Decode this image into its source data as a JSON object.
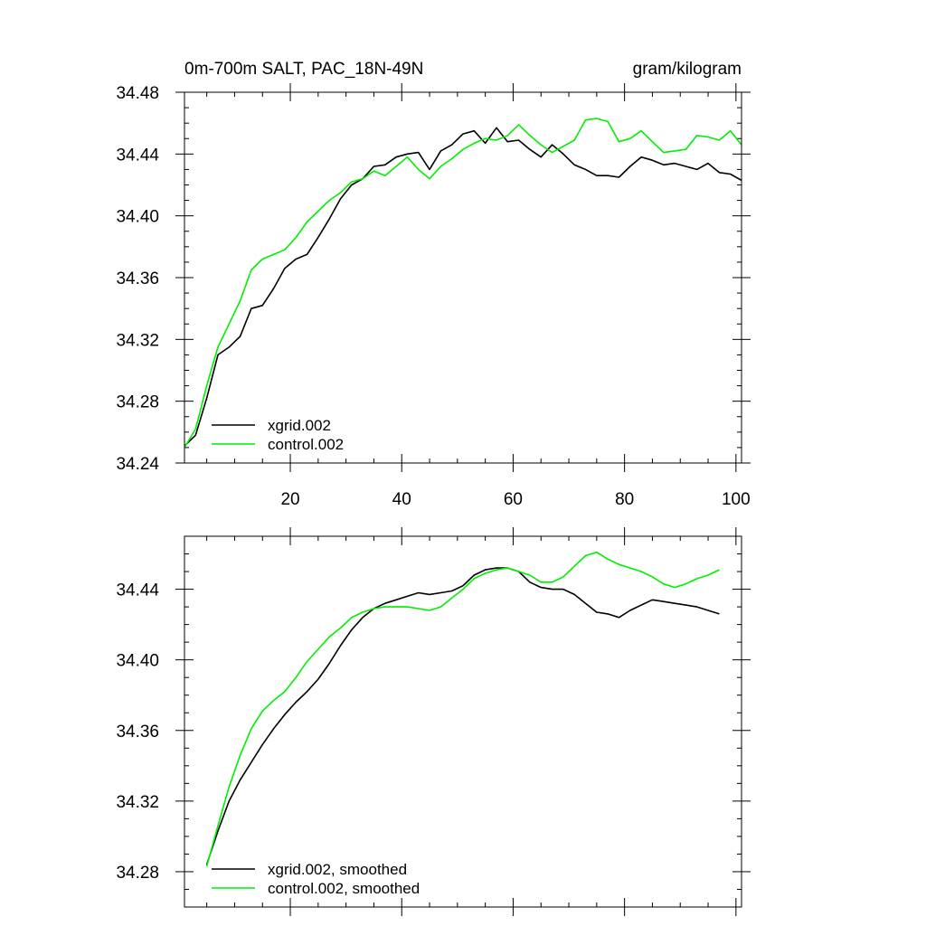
{
  "chart_data": [
    {
      "type": "line",
      "title": "0m-700m SALT, PAC_18N-49N",
      "units": "gram/kilogram",
      "xlim": [
        1,
        101
      ],
      "ylim": [
        34.24,
        34.48
      ],
      "x_ticks": [
        20,
        40,
        60,
        80,
        100
      ],
      "y_ticks": [
        34.24,
        34.28,
        34.32,
        34.36,
        34.4,
        34.44,
        34.48
      ],
      "y_tick_labels": [
        "34.24",
        "34.28",
        "34.32",
        "34.36",
        "34.40",
        "34.44",
        "34.48"
      ],
      "x_tick_labels": [
        "20",
        "40",
        "60",
        "80",
        "100"
      ],
      "legend": [
        "xgrid.002",
        "control.002"
      ],
      "legend_position": "bottom-left",
      "series": [
        {
          "name": "xgrid.002",
          "color": "#000000",
          "x": [
            1,
            3,
            5,
            7,
            9,
            11,
            13,
            15,
            17,
            19,
            21,
            23,
            25,
            27,
            29,
            31,
            33,
            35,
            37,
            39,
            41,
            43,
            45,
            47,
            49,
            51,
            53,
            55,
            57,
            59,
            61,
            63,
            65,
            67,
            69,
            71,
            73,
            75,
            77,
            79,
            81,
            83,
            85,
            87,
            89,
            91,
            93,
            95,
            97,
            99,
            101
          ],
          "values": [
            34.251,
            34.258,
            34.282,
            34.31,
            34.315,
            34.322,
            34.34,
            34.342,
            34.353,
            34.366,
            34.372,
            34.375,
            34.386,
            34.398,
            34.411,
            34.42,
            34.424,
            34.432,
            34.433,
            34.438,
            34.44,
            34.441,
            34.43,
            34.442,
            34.446,
            34.453,
            34.455,
            34.447,
            34.457,
            34.448,
            34.449,
            34.443,
            34.438,
            34.446,
            34.44,
            34.433,
            34.43,
            34.426,
            34.426,
            34.425,
            34.432,
            34.438,
            34.436,
            34.433,
            34.434,
            34.432,
            34.43,
            34.434,
            34.428,
            34.427,
            34.423
          ]
        },
        {
          "name": "control.002",
          "color": "#00ee00",
          "x": [
            1,
            3,
            5,
            7,
            9,
            11,
            13,
            15,
            17,
            19,
            21,
            23,
            25,
            27,
            29,
            31,
            33,
            35,
            37,
            39,
            41,
            43,
            45,
            47,
            49,
            51,
            53,
            55,
            57,
            59,
            61,
            63,
            65,
            67,
            69,
            71,
            73,
            75,
            77,
            79,
            81,
            83,
            85,
            87,
            89,
            91,
            93,
            95,
            97,
            99,
            101
          ],
          "values": [
            34.25,
            34.262,
            34.29,
            34.315,
            34.33,
            34.345,
            34.365,
            34.372,
            34.375,
            34.378,
            34.386,
            34.396,
            34.403,
            34.41,
            34.415,
            34.422,
            34.424,
            34.429,
            34.426,
            34.432,
            34.438,
            34.43,
            34.424,
            34.432,
            34.437,
            34.443,
            34.447,
            34.45,
            34.449,
            34.452,
            34.459,
            34.452,
            34.446,
            34.441,
            34.445,
            34.449,
            34.462,
            34.463,
            34.461,
            34.448,
            34.45,
            34.455,
            34.448,
            34.441,
            34.442,
            34.443,
            34.452,
            34.451,
            34.449,
            34.455,
            34.446
          ]
        }
      ]
    },
    {
      "type": "line",
      "title": "",
      "xlim": [
        1,
        101
      ],
      "ylim": [
        34.26,
        34.47
      ],
      "x_ticks": [
        20,
        40,
        60,
        80,
        100
      ],
      "y_ticks": [
        34.28,
        34.32,
        34.36,
        34.4,
        34.44
      ],
      "y_tick_labels": [
        "34.28",
        "34.32",
        "34.36",
        "34.40",
        "34.44"
      ],
      "legend": [
        "xgrid.002, smoothed",
        "control.002, smoothed"
      ],
      "legend_position": "bottom-left",
      "series": [
        {
          "name": "xgrid.002, smoothed",
          "color": "#000000",
          "x": [
            5,
            7,
            9,
            11,
            13,
            15,
            17,
            19,
            21,
            23,
            25,
            27,
            29,
            31,
            33,
            35,
            37,
            39,
            41,
            43,
            45,
            47,
            49,
            51,
            53,
            55,
            57,
            59,
            61,
            63,
            65,
            67,
            69,
            71,
            73,
            75,
            77,
            79,
            81,
            83,
            85,
            87,
            89,
            91,
            93,
            95,
            97
          ],
          "values": [
            34.284,
            34.303,
            34.32,
            34.332,
            34.342,
            34.352,
            34.361,
            34.369,
            34.376,
            34.382,
            34.389,
            34.398,
            34.408,
            34.417,
            34.424,
            34.429,
            34.432,
            34.434,
            34.436,
            34.438,
            34.437,
            34.438,
            34.439,
            34.442,
            34.448,
            34.451,
            34.452,
            34.452,
            34.45,
            34.444,
            34.441,
            34.44,
            34.44,
            34.437,
            34.432,
            34.427,
            34.426,
            34.424,
            34.428,
            34.431,
            34.434,
            34.433,
            34.432,
            34.431,
            34.43,
            34.428,
            34.426
          ]
        },
        {
          "name": "control.002, smoothed",
          "color": "#00ee00",
          "x": [
            5,
            7,
            9,
            11,
            13,
            15,
            17,
            19,
            21,
            23,
            25,
            27,
            29,
            31,
            33,
            35,
            37,
            39,
            41,
            43,
            45,
            47,
            49,
            51,
            53,
            55,
            57,
            59,
            61,
            63,
            65,
            67,
            69,
            71,
            73,
            75,
            77,
            79,
            81,
            83,
            85,
            87,
            89,
            91,
            93,
            95,
            97
          ],
          "values": [
            34.283,
            34.306,
            34.328,
            34.346,
            34.361,
            34.371,
            34.377,
            34.382,
            34.39,
            34.399,
            34.406,
            34.413,
            34.418,
            34.424,
            34.427,
            34.429,
            34.43,
            34.43,
            34.43,
            34.429,
            34.428,
            34.43,
            34.435,
            34.44,
            34.446,
            34.449,
            34.451,
            34.452,
            34.45,
            34.448,
            34.444,
            34.444,
            34.447,
            34.453,
            34.459,
            34.461,
            34.457,
            34.454,
            34.452,
            34.45,
            34.447,
            34.443,
            34.441,
            34.443,
            34.446,
            34.448,
            34.451
          ]
        }
      ]
    }
  ]
}
